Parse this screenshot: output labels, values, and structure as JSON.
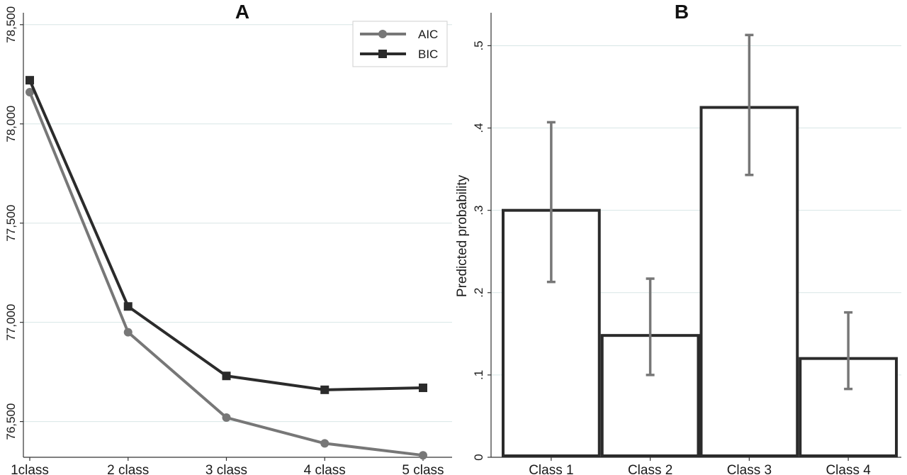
{
  "chart_data": [
    {
      "type": "line",
      "title": "A",
      "categories": [
        "1class",
        "2 class",
        "3 class",
        "4 class",
        "5 class"
      ],
      "ylim": [
        76320,
        78560
      ],
      "yticks": [
        76500,
        77000,
        77500,
        78000,
        78500
      ],
      "ytick_labels": [
        "76,500",
        "77,000",
        "77,500",
        "78,000",
        "78,500"
      ],
      "grid": true,
      "legend_position": "top-right",
      "series": [
        {
          "name": "AIC",
          "marker": "circle",
          "color": "#777777",
          "values": [
            78160,
            76950,
            76520,
            76390,
            76330
          ]
        },
        {
          "name": "BIC",
          "marker": "square",
          "color": "#2b2b2b",
          "values": [
            78220,
            77080,
            76730,
            76660,
            76670
          ]
        }
      ]
    },
    {
      "type": "bar",
      "title": "B",
      "ylabel": "Predicted probability",
      "categories": [
        "Class 1",
        "Class 2",
        "Class 3",
        "Class 4"
      ],
      "values": [
        0.3,
        0.148,
        0.425,
        0.12
      ],
      "ci_lower": [
        0.213,
        0.1,
        0.343,
        0.083
      ],
      "ci_upper": [
        0.407,
        0.217,
        0.513,
        0.176
      ],
      "ylim": [
        0,
        0.54
      ],
      "yticks": [
        0,
        0.1,
        0.2,
        0.3,
        0.4,
        0.5
      ],
      "ytick_labels": [
        "0",
        ".1",
        ".2",
        ".3",
        ".4",
        ".5"
      ],
      "grid": true,
      "bar_color": "#ffffff",
      "bar_edge_color": "#2b2b2b",
      "errorbar_color": "#777777"
    }
  ]
}
